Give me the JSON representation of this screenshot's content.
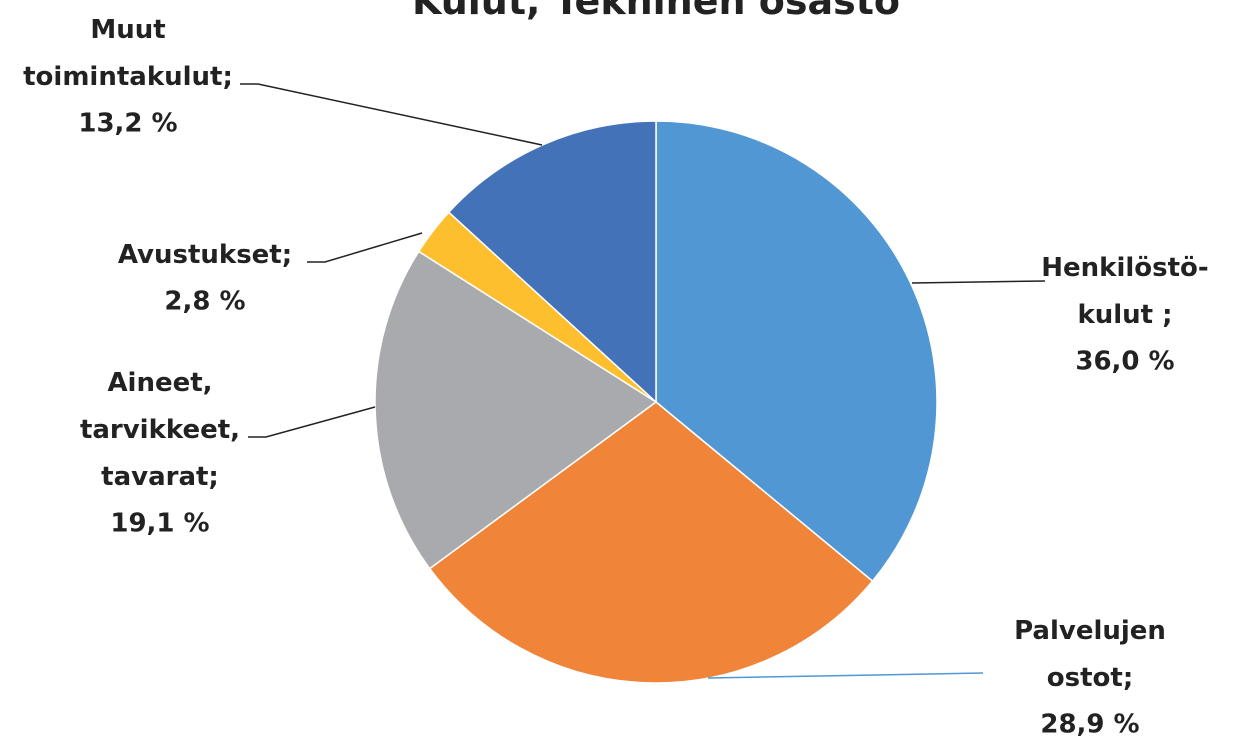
{
  "chart_data": {
    "type": "pie",
    "title": "Kulut, Tekninen osasto",
    "categories": [
      "Henkilöstö-kulut ;",
      "Palvelujen ostot;",
      "Aineet, tarvikkeet, tavarat;",
      "Avustukset;",
      "Muut toimintakulut;"
    ],
    "values": [
      36.0,
      28.9,
      19.1,
      2.8,
      13.2
    ],
    "value_labels": [
      "36,0 %",
      "28,9 %",
      "19,1 %",
      "2,8 %",
      "13,2 %"
    ],
    "colors": [
      "#5097d3",
      "#f08439",
      "#a9aaad",
      "#fdbf2d",
      "#4472b8"
    ]
  }
}
